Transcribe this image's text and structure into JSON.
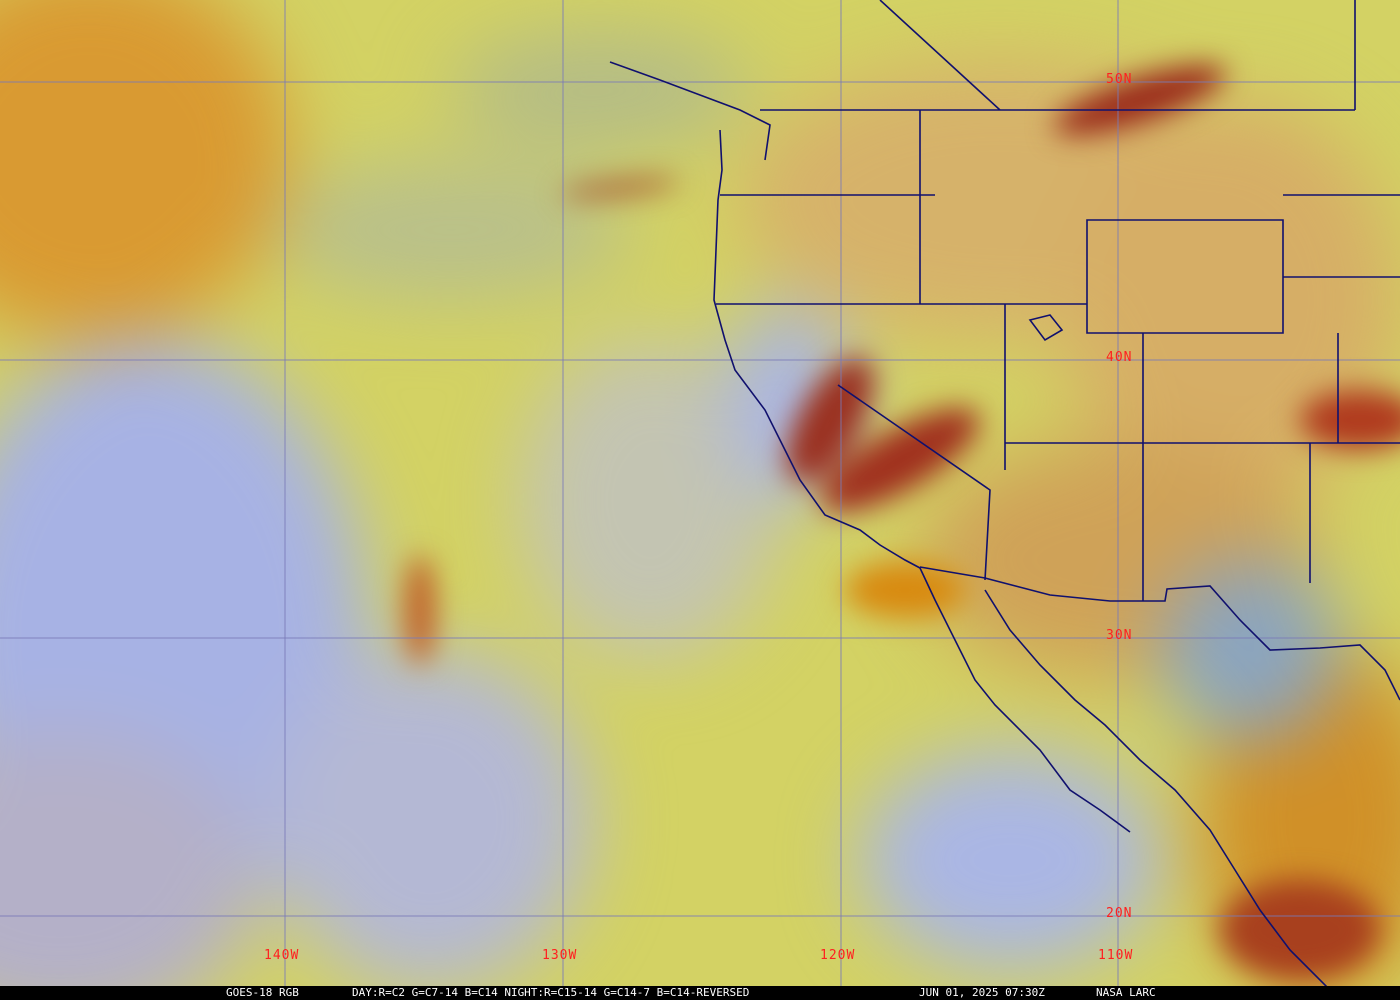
{
  "map": {
    "grid_labels": {
      "lon": [
        "140W",
        "130W",
        "120W",
        "110W"
      ],
      "lat": [
        "50N",
        "40N",
        "30N",
        "20N"
      ]
    },
    "colors": {
      "ocean_clear": "#d6d462",
      "low_cloud": "#a8b4e6",
      "dust_haze": "#d8a034",
      "high_cloud": "#a0301e",
      "borders": "#10106e",
      "grid": "#7a7ab8",
      "labels": "#ff2020"
    }
  },
  "caption": {
    "product": "GOES-18 RGB",
    "recipe": "DAY:R=C2 G=C7-14 B=C14 NIGHT:R=C15-14 G=C14-7 B=C14-REVERSED",
    "datetime": "JUN 01, 2025 07:30Z",
    "source": "NASA LARC"
  }
}
